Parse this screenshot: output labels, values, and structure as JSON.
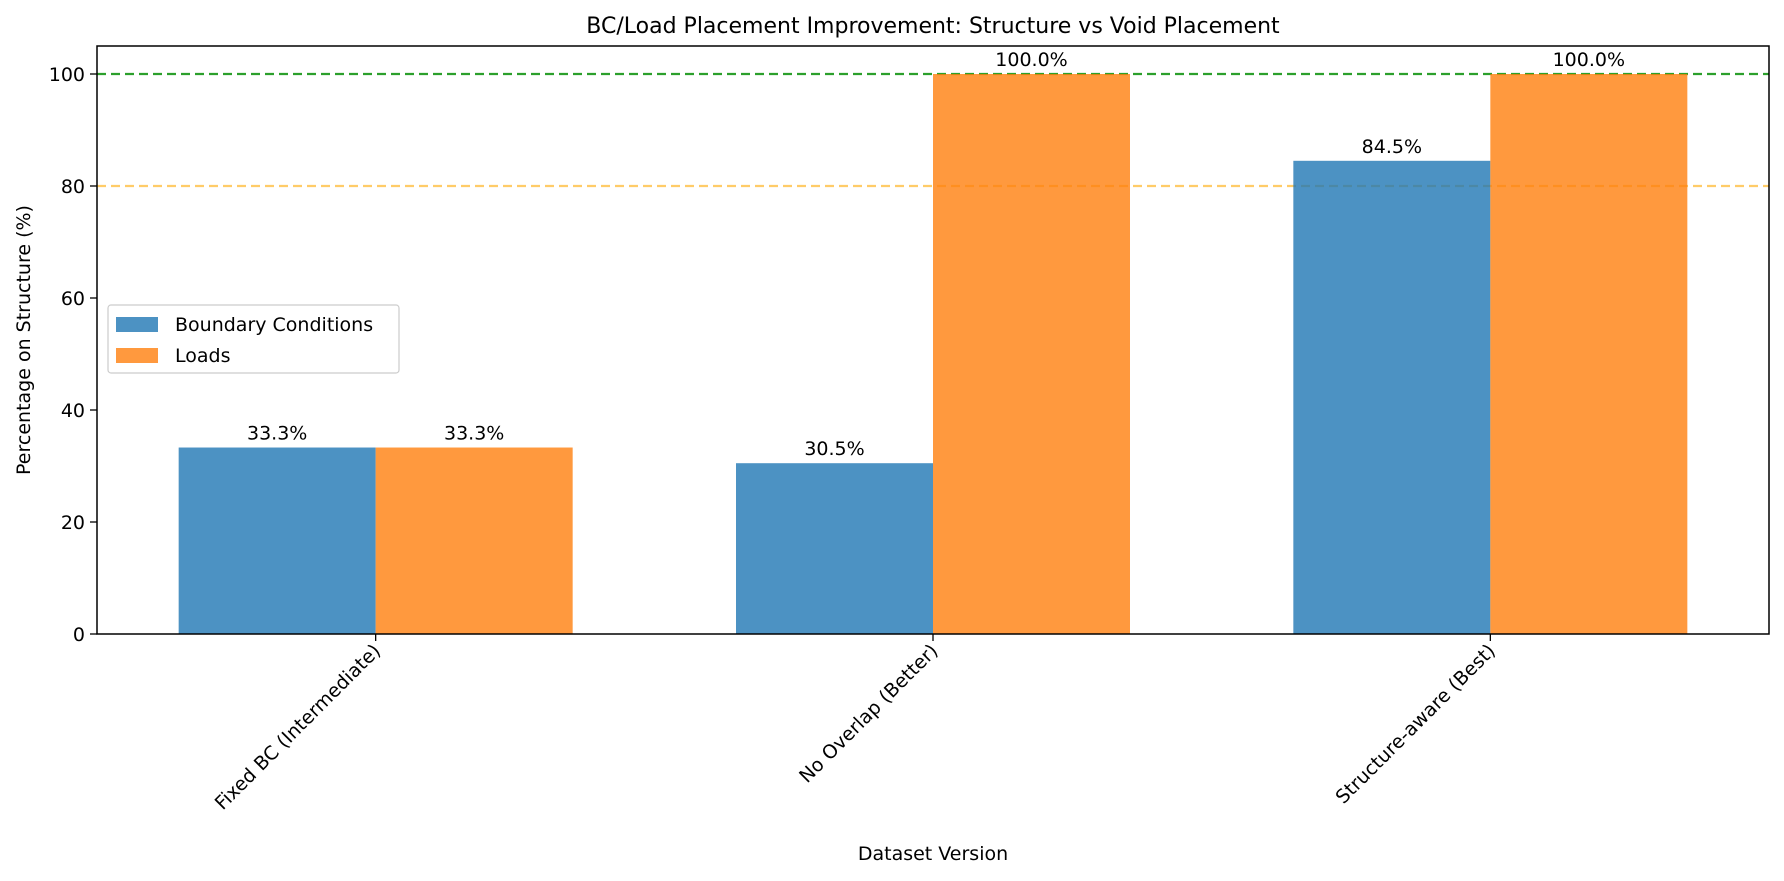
{
  "chart_data": {
    "type": "bar",
    "title": "BC/Load Placement Improvement: Structure vs Void Placement",
    "xlabel": "Dataset Version",
    "ylabel": "Percentage on Structure (%)",
    "categories": [
      "Fixed BC (Intermediate)",
      "No Overlap (Better)",
      "Structure-aware (Best)"
    ],
    "series": [
      {
        "name": "Boundary Conditions",
        "values": [
          33.3,
          30.5,
          84.5
        ],
        "labels": [
          "33.3%",
          "30.5%",
          "84.5%"
        ],
        "color": "#1f77b4"
      },
      {
        "name": "Loads",
        "values": [
          33.3,
          100.0,
          100.0
        ],
        "labels": [
          "33.3%",
          "100.0%",
          "100.0%"
        ],
        "color": "#ff7f0e"
      }
    ],
    "ylim": [
      0,
      105
    ],
    "yticks": [
      0,
      20,
      40,
      60,
      80,
      100
    ],
    "reference_lines": [
      {
        "y": 100,
        "color": "#2ca02c",
        "style": "dashed"
      },
      {
        "y": 80,
        "color": "#ffc34d",
        "style": "dashed"
      }
    ],
    "legend_position": "center-left",
    "grid": false
  }
}
